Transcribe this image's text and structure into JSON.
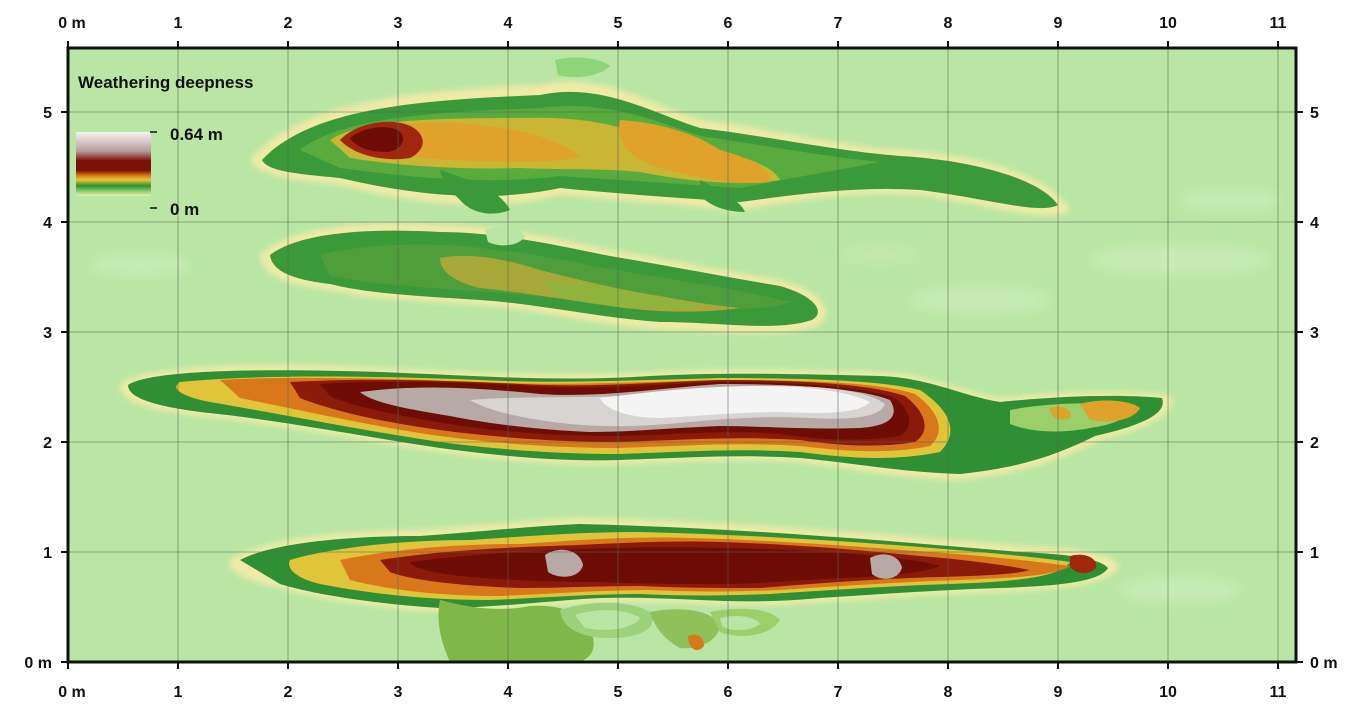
{
  "map": {
    "legend_title": "Weathering deepness",
    "legend_max": "0.64 m",
    "legend_min": "0 m",
    "x_axis": {
      "min": 0,
      "max": 11,
      "unit": "m",
      "tick_labels": [
        "0 m",
        "1",
        "2",
        "3",
        "4",
        "5",
        "6",
        "7",
        "8",
        "9",
        "10",
        "11"
      ]
    },
    "y_axis": {
      "min": 0,
      "max": 5,
      "unit": "m",
      "left_tick_labels": [
        "0 m",
        "1",
        "2",
        "3",
        "4",
        "5"
      ],
      "right_tick_labels": [
        "0 m",
        "1",
        "2",
        "3",
        "4",
        "5"
      ]
    },
    "grid": true,
    "colors": {
      "background": "#b9e6a4",
      "light_green": "#8fd37a",
      "green": "#3a9a3a",
      "dark_green": "#1f7a2a",
      "olive": "#a8a83a",
      "yellow": "#e6d43a",
      "orange": "#d98a1a",
      "brown": "#8a1a0a",
      "dark_brown": "#6e0c06",
      "grey": "#b7a9a6",
      "white": "#f4f4f4"
    }
  }
}
